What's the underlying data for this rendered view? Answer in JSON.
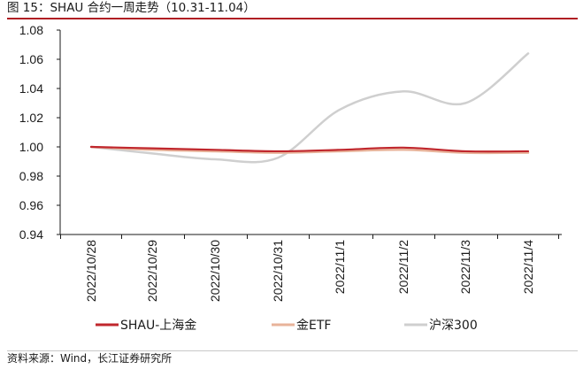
{
  "figure": {
    "title": "图 15：SHAU 合约一周走势（10.31-11.04）",
    "source": "资料来源：Wind，长江证券研究所"
  },
  "chart_data": {
    "type": "line",
    "x": [
      "2022/10/28",
      "2022/10/29",
      "2022/10/30",
      "2022/10/31",
      "2022/11/1",
      "2022/11/2",
      "2022/11/3",
      "2022/11/4"
    ],
    "ylim": [
      0.94,
      1.08
    ],
    "yticks": [
      "1.08",
      "1.06",
      "1.04",
      "1.02",
      "1.00",
      "0.98",
      "0.96",
      "0.94"
    ],
    "grid": false,
    "legend_position": "bottom",
    "series": [
      {
        "name": "SHAU-上海金",
        "color": "#c0272d",
        "values": [
          1.0,
          0.999,
          0.998,
          0.997,
          0.998,
          0.9995,
          0.997,
          0.997
        ]
      },
      {
        "name": "金ETF",
        "color": "#e8b39a",
        "values": [
          1.0,
          0.998,
          0.997,
          0.996,
          0.997,
          0.998,
          0.996,
          0.996
        ]
      },
      {
        "name": "沪深300",
        "color": "#cfcfcf",
        "values": [
          1.0,
          0.9955,
          0.9915,
          0.9925,
          1.0255,
          1.038,
          1.03,
          1.064
        ]
      }
    ]
  }
}
